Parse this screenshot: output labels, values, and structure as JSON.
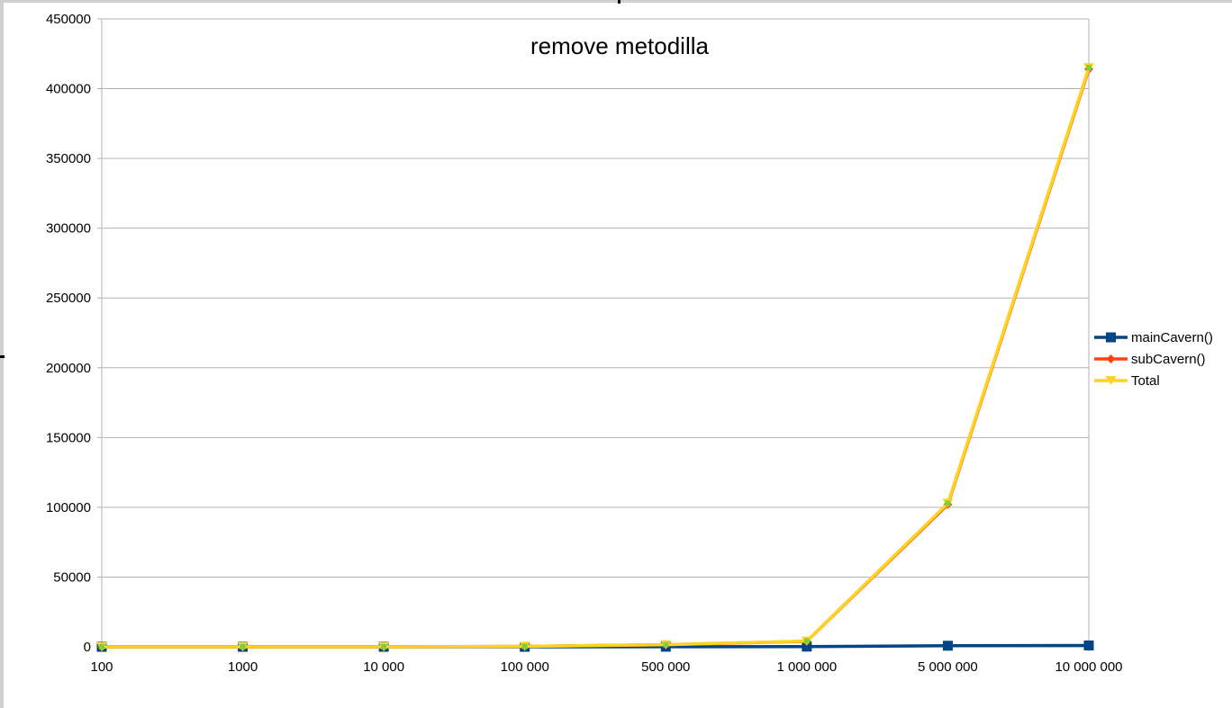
{
  "chart_data": {
    "type": "line",
    "title": "remove metodilla",
    "xlabel": "",
    "ylabel": "",
    "categories": [
      "100",
      "1000",
      "10 000",
      "100 000",
      "500 000",
      "1 000 000",
      "5 000 000",
      "10 000 000"
    ],
    "ylim": [
      0,
      450000
    ],
    "yticks": [
      0,
      50000,
      100000,
      150000,
      200000,
      250000,
      300000,
      350000,
      400000,
      450000
    ],
    "ytick_labels": [
      "0",
      "50000",
      "100000",
      "150000",
      "200000",
      "250000",
      "300000",
      "350000",
      "400000",
      "450000"
    ],
    "grid": true,
    "legend_position": "right",
    "series": [
      {
        "name": "mainCavern()",
        "color": "#004586",
        "marker": "square",
        "values": [
          0,
          0,
          0,
          5,
          50,
          150,
          800,
          1000
        ]
      },
      {
        "name": "subCavern()",
        "color": "#ff420e",
        "marker": "diamond",
        "values": [
          0,
          5,
          30,
          300,
          1500,
          4000,
          102000,
          414000
        ]
      },
      {
        "name": "Total",
        "color": "#ffd320",
        "marker": "triangle-down",
        "values": [
          0,
          5,
          30,
          305,
          1550,
          4150,
          102800,
          415000
        ]
      }
    ]
  }
}
